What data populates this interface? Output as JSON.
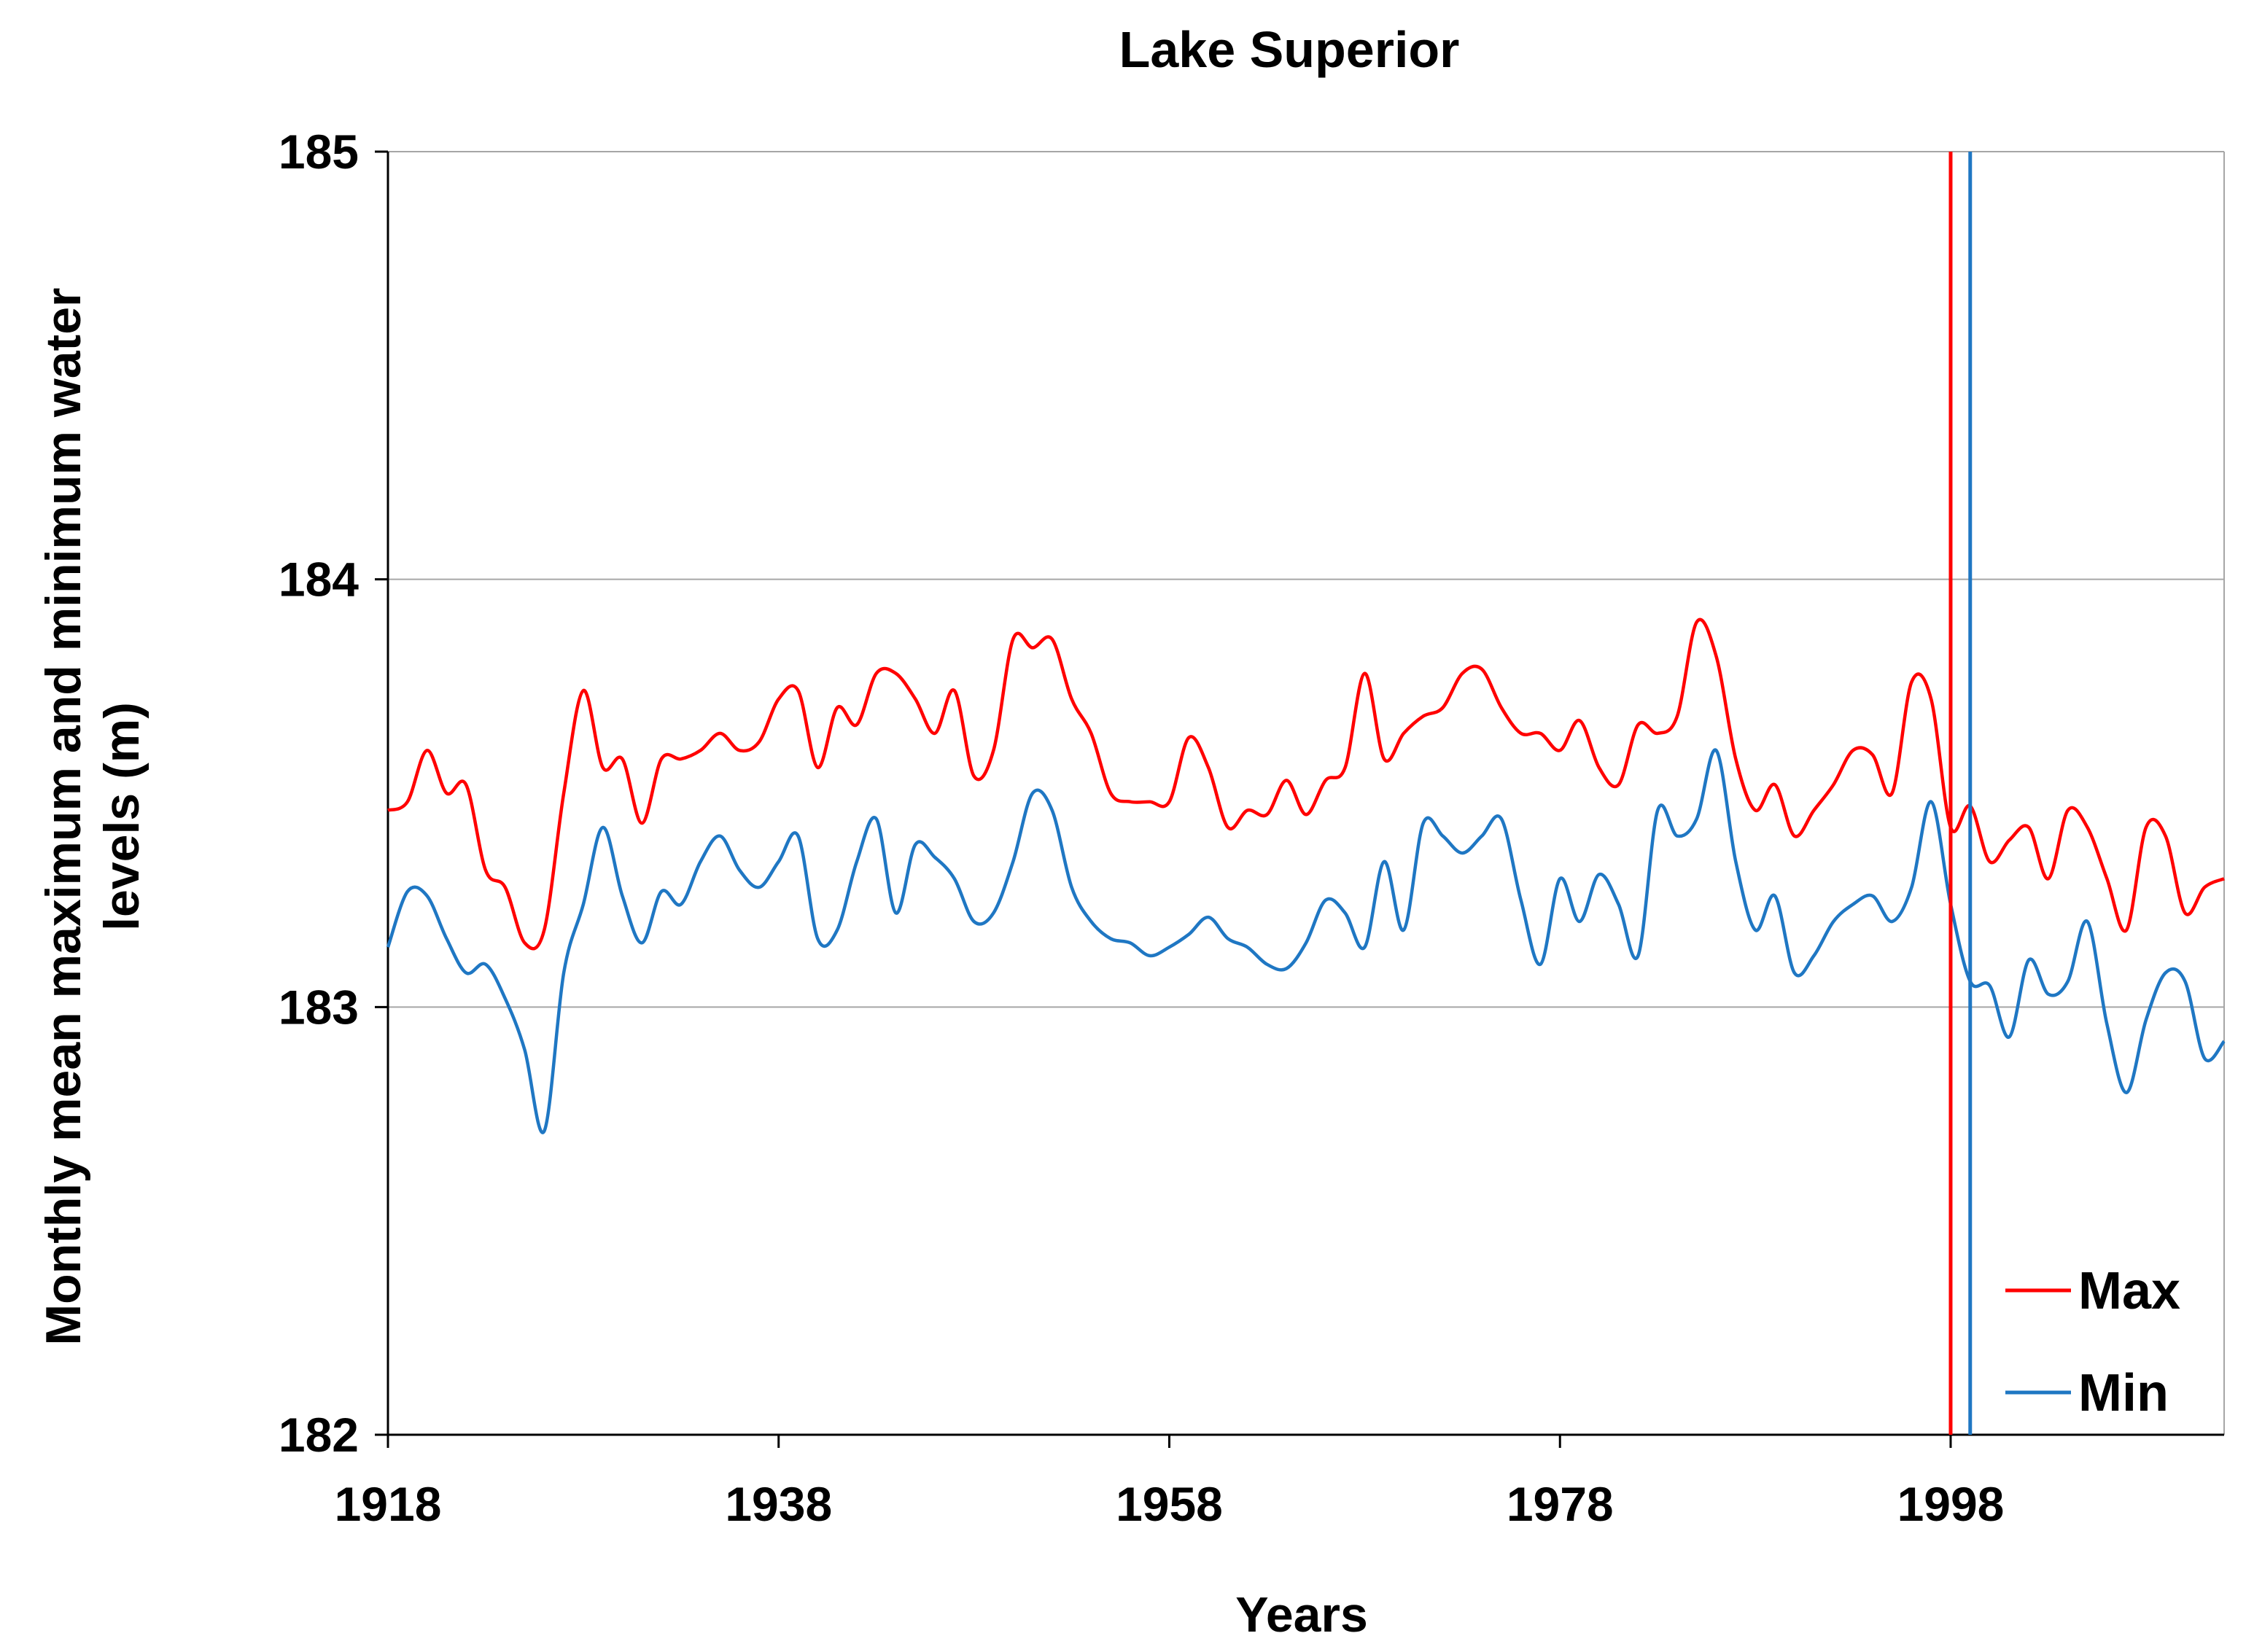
{
  "chart_data": {
    "type": "line",
    "title": "Lake Superior",
    "xlabel": "Years",
    "ylabel_line1": "Monthly mean maximum and minimum water",
    "ylabel_line2": "levels (m)",
    "xlim": [
      1918,
      2012
    ],
    "ylim": [
      182,
      185
    ],
    "x_ticks": [
      1918,
      1938,
      1958,
      1978,
      1998
    ],
    "y_ticks": [
      182,
      183,
      184,
      185
    ],
    "grid": "horizontal",
    "legend_position": "bottom-right",
    "vertical_markers": [
      {
        "series": "Max",
        "x": 1998.0,
        "color": "#ff0000"
      },
      {
        "series": "Min",
        "x": 1999.0,
        "color": "#1f77c3"
      }
    ],
    "series": [
      {
        "name": "Max",
        "color": "#ff0000",
        "points": [
          [
            1918.0,
            183.46
          ],
          [
            1919.0,
            183.48
          ],
          [
            1920.0,
            183.6
          ],
          [
            1921.0,
            183.5
          ],
          [
            1922.0,
            183.52
          ],
          [
            1923.0,
            183.32
          ],
          [
            1924.0,
            183.28
          ],
          [
            1925.0,
            183.15
          ],
          [
            1926.0,
            183.18
          ],
          [
            1927.0,
            183.5
          ],
          [
            1928.0,
            183.74
          ],
          [
            1929.0,
            183.56
          ],
          [
            1930.0,
            183.58
          ],
          [
            1931.0,
            183.43
          ],
          [
            1932.0,
            183.58
          ],
          [
            1933.0,
            183.58
          ],
          [
            1934.0,
            183.6
          ],
          [
            1935.0,
            183.64
          ],
          [
            1936.0,
            183.6
          ],
          [
            1937.0,
            183.62
          ],
          [
            1938.0,
            183.72
          ],
          [
            1939.0,
            183.74
          ],
          [
            1940.0,
            183.56
          ],
          [
            1941.0,
            183.7
          ],
          [
            1942.0,
            183.66
          ],
          [
            1943.0,
            183.78
          ],
          [
            1944.0,
            183.78
          ],
          [
            1945.0,
            183.72
          ],
          [
            1946.0,
            183.64
          ],
          [
            1947.0,
            183.74
          ],
          [
            1948.0,
            183.54
          ],
          [
            1949.0,
            183.6
          ],
          [
            1950.0,
            183.86
          ],
          [
            1951.0,
            183.84
          ],
          [
            1952.0,
            183.86
          ],
          [
            1953.0,
            183.72
          ],
          [
            1954.0,
            183.64
          ],
          [
            1955.0,
            183.5
          ],
          [
            1956.0,
            183.48
          ],
          [
            1957.0,
            183.48
          ],
          [
            1958.0,
            183.48
          ],
          [
            1959.0,
            183.63
          ],
          [
            1960.0,
            183.56
          ],
          [
            1961.0,
            183.42
          ],
          [
            1962.0,
            183.46
          ],
          [
            1963.0,
            183.45
          ],
          [
            1964.0,
            183.53
          ],
          [
            1965.0,
            183.45
          ],
          [
            1966.0,
            183.53
          ],
          [
            1967.0,
            183.56
          ],
          [
            1968.0,
            183.78
          ],
          [
            1969.0,
            183.58
          ],
          [
            1970.0,
            183.64
          ],
          [
            1971.0,
            183.68
          ],
          [
            1972.0,
            183.7
          ],
          [
            1973.0,
            183.78
          ],
          [
            1974.0,
            183.79
          ],
          [
            1975.0,
            183.7
          ],
          [
            1976.0,
            183.64
          ],
          [
            1977.0,
            183.64
          ],
          [
            1978.0,
            183.6
          ],
          [
            1979.0,
            183.67
          ],
          [
            1980.0,
            183.56
          ],
          [
            1981.0,
            183.52
          ],
          [
            1982.0,
            183.66
          ],
          [
            1983.0,
            183.64
          ],
          [
            1984.0,
            183.68
          ],
          [
            1985.0,
            183.9
          ],
          [
            1986.0,
            183.82
          ],
          [
            1987.0,
            183.58
          ],
          [
            1988.0,
            183.46
          ],
          [
            1989.0,
            183.52
          ],
          [
            1990.0,
            183.4
          ],
          [
            1991.0,
            183.46
          ],
          [
            1992.0,
            183.52
          ],
          [
            1993.0,
            183.6
          ],
          [
            1994.0,
            183.59
          ],
          [
            1995.0,
            183.5
          ],
          [
            1996.0,
            183.76
          ],
          [
            1997.0,
            183.72
          ],
          [
            1998.0,
            183.42
          ],
          [
            1999.0,
            183.47
          ],
          [
            2000.0,
            183.34
          ],
          [
            2001.0,
            183.39
          ],
          [
            2002.0,
            183.42
          ],
          [
            2003.0,
            183.3
          ],
          [
            2004.0,
            183.46
          ],
          [
            2005.0,
            183.42
          ],
          [
            2006.0,
            183.3
          ],
          [
            2007.0,
            183.18
          ],
          [
            2008.0,
            183.42
          ],
          [
            2009.0,
            183.4
          ],
          [
            2010.0,
            183.22
          ],
          [
            2011.0,
            183.28
          ],
          [
            2012.0,
            183.3
          ]
        ]
      },
      {
        "name": "Min",
        "color": "#1f77c3",
        "points": [
          [
            1918.0,
            183.14
          ],
          [
            1919.0,
            183.27
          ],
          [
            1920.0,
            183.26
          ],
          [
            1921.0,
            183.16
          ],
          [
            1922.0,
            183.08
          ],
          [
            1923.0,
            183.1
          ],
          [
            1924.0,
            183.02
          ],
          [
            1925.0,
            182.9
          ],
          [
            1926.0,
            182.71
          ],
          [
            1927.0,
            183.08
          ],
          [
            1928.0,
            183.24
          ],
          [
            1929.0,
            183.42
          ],
          [
            1930.0,
            183.26
          ],
          [
            1931.0,
            183.15
          ],
          [
            1932.0,
            183.27
          ],
          [
            1933.0,
            183.24
          ],
          [
            1934.0,
            183.34
          ],
          [
            1935.0,
            183.4
          ],
          [
            1936.0,
            183.32
          ],
          [
            1937.0,
            183.28
          ],
          [
            1938.0,
            183.34
          ],
          [
            1939.0,
            183.4
          ],
          [
            1940.0,
            183.16
          ],
          [
            1941.0,
            183.18
          ],
          [
            1942.0,
            183.34
          ],
          [
            1943.0,
            183.44
          ],
          [
            1944.0,
            183.22
          ],
          [
            1945.0,
            183.38
          ],
          [
            1946.0,
            183.35
          ],
          [
            1947.0,
            183.3
          ],
          [
            1948.0,
            183.2
          ],
          [
            1949.0,
            183.22
          ],
          [
            1950.0,
            183.34
          ],
          [
            1951.0,
            183.5
          ],
          [
            1952.0,
            183.46
          ],
          [
            1953.0,
            183.28
          ],
          [
            1954.0,
            183.2
          ],
          [
            1955.0,
            183.16
          ],
          [
            1956.0,
            183.15
          ],
          [
            1957.0,
            183.12
          ],
          [
            1958.0,
            183.14
          ],
          [
            1959.0,
            183.17
          ],
          [
            1960.0,
            183.21
          ],
          [
            1961.0,
            183.16
          ],
          [
            1962.0,
            183.14
          ],
          [
            1963.0,
            183.1
          ],
          [
            1964.0,
            183.09
          ],
          [
            1965.0,
            183.15
          ],
          [
            1966.0,
            183.25
          ],
          [
            1967.0,
            183.22
          ],
          [
            1968.0,
            183.14
          ],
          [
            1969.0,
            183.34
          ],
          [
            1970.0,
            183.18
          ],
          [
            1971.0,
            183.43
          ],
          [
            1972.0,
            183.4
          ],
          [
            1973.0,
            183.36
          ],
          [
            1974.0,
            183.4
          ],
          [
            1975.0,
            183.44
          ],
          [
            1976.0,
            183.25
          ],
          [
            1977.0,
            183.1
          ],
          [
            1978.0,
            183.3
          ],
          [
            1979.0,
            183.2
          ],
          [
            1980.0,
            183.31
          ],
          [
            1981.0,
            183.24
          ],
          [
            1982.0,
            183.12
          ],
          [
            1983.0,
            183.46
          ],
          [
            1984.0,
            183.4
          ],
          [
            1985.0,
            183.44
          ],
          [
            1986.0,
            183.6
          ],
          [
            1987.0,
            183.34
          ],
          [
            1988.0,
            183.18
          ],
          [
            1989.0,
            183.26
          ],
          [
            1990.0,
            183.08
          ],
          [
            1991.0,
            183.12
          ],
          [
            1992.0,
            183.2
          ],
          [
            1993.0,
            183.24
          ],
          [
            1994.0,
            183.26
          ],
          [
            1995.0,
            183.2
          ],
          [
            1996.0,
            183.28
          ],
          [
            1997.0,
            183.48
          ],
          [
            1998.0,
            183.24
          ],
          [
            1999.0,
            183.06
          ],
          [
            2000.0,
            183.05
          ],
          [
            2001.0,
            182.93
          ],
          [
            2002.0,
            183.11
          ],
          [
            2003.0,
            183.03
          ],
          [
            2004.0,
            183.06
          ],
          [
            2005.0,
            183.2
          ],
          [
            2006.0,
            182.96
          ],
          [
            2007.0,
            182.8
          ],
          [
            2008.0,
            182.97
          ],
          [
            2009.0,
            183.08
          ],
          [
            2010.0,
            183.06
          ],
          [
            2011.0,
            182.88
          ],
          [
            2012.0,
            182.92
          ]
        ]
      }
    ]
  }
}
